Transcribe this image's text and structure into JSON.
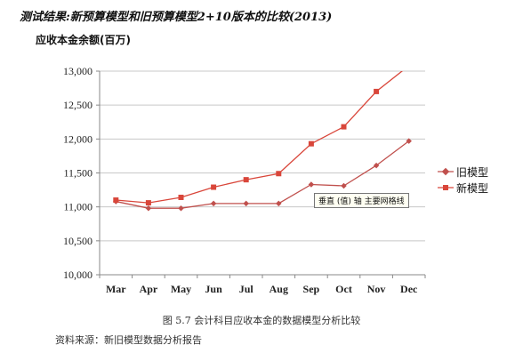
{
  "chart_data": {
    "type": "line",
    "title": "测试结果:新预算模型和旧预算模型2+10版本的比较(2013)",
    "ylabel": "应收本金余额(百万)",
    "categories": [
      "Mar",
      "Apr",
      "May",
      "Jun",
      "Jul",
      "Aug",
      "Sep",
      "Oct",
      "Nov",
      "Dec"
    ],
    "y_ticks": [
      "10,000",
      "10,500",
      "11,000",
      "11,500",
      "12,000",
      "12,500",
      "13,000"
    ],
    "ylim": [
      10000,
      13000
    ],
    "grid": true,
    "legend_position": "right",
    "series": [
      {
        "name": "旧模型",
        "marker": "diamond",
        "color": "#c0504d",
        "values": [
          11080,
          10980,
          10980,
          11050,
          11050,
          11050,
          11330,
          11310,
          11610,
          11970
        ]
      },
      {
        "name": "新模型",
        "marker": "square",
        "color": "#d9463a",
        "values": [
          11100,
          11060,
          11140,
          11290,
          11400,
          11490,
          11930,
          12180,
          12700,
          13080
        ]
      }
    ]
  },
  "tooltip": "垂直 (值) 轴 主要网格线",
  "caption": "图 5.7    会计科目应收本金的数据模型分析比较",
  "source": "资料来源：新旧模型数据分析报告"
}
